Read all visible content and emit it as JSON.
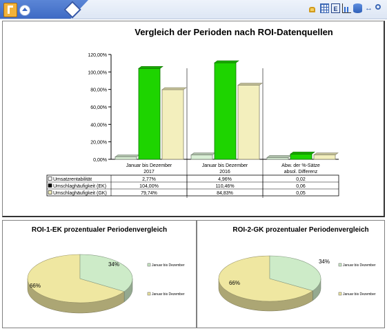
{
  "colors": {
    "green": "#1ed400",
    "cream": "#f3efbd",
    "light_green": "#cdebc8",
    "pie_yellow": "#efe7a1",
    "toolbar_blue": "#3e6ac4"
  },
  "toolbar": {
    "icons": [
      "app-icon",
      "up-icon",
      "nav-diamond-icon",
      "lock-icon",
      "grid-icon",
      "et-icon",
      "bar-chart-icon",
      "database-icon",
      "arrows-icon",
      "zoom-icon"
    ]
  },
  "main_chart": {
    "title": "Vergleich der Perioden nach ROI-Datenquellen",
    "y_ticks": [
      "0,00%",
      "20,00%",
      "40,00%",
      "60,00%",
      "80,00%",
      "100,00%",
      "120,00%"
    ],
    "column_headers": [
      [
        "Januar bis Dezember",
        "2017"
      ],
      [
        "Januar bis Dezember",
        "2016"
      ],
      [
        "Abw. der %-Sätze",
        "absol. Differenz"
      ]
    ],
    "rows": [
      {
        "label": "Umsatzrentabilität",
        "cells": [
          "2,77%",
          "4,96%",
          "0,02"
        ]
      },
      {
        "label": "Umschlaghäufigkeit (EK)",
        "cells": [
          "104,00%",
          "110,46%",
          "0,06"
        ]
      },
      {
        "label": "Umschlaghäufigkeit (GK)",
        "cells": [
          "79,74%",
          "84,83%",
          "0,05"
        ]
      }
    ]
  },
  "chart_data": [
    {
      "type": "bar",
      "title": "Vergleich der Perioden nach ROI-Datenquellen",
      "categories": [
        "Januar bis Dezember 2017",
        "Januar bis Dezember 2016",
        "Abw. der %-Sätze absol. Differenz"
      ],
      "series": [
        {
          "name": "Umsatzrentabilität",
          "values": [
            2.77,
            4.96,
            0.02
          ]
        },
        {
          "name": "Umschlaghäufigkeit (EK)",
          "values": [
            104.0,
            110.46,
            0.06
          ]
        },
        {
          "name": "Umschlaghäufigkeit (GK)",
          "values": [
            79.74,
            84.83,
            0.05
          ]
        }
      ],
      "bar_heights": [
        [
          2.77,
          104.0,
          79.74
        ],
        [
          4.96,
          110.46,
          84.83
        ],
        [
          2.0,
          6.0,
          5.0
        ]
      ],
      "ylim": [
        0,
        120
      ],
      "grid": false,
      "legend": "table-below"
    },
    {
      "type": "pie",
      "title": "ROI-1-EK prozentualer Periodenvergleich",
      "labels": [
        "Januar bis Dezember",
        "Januar bis Dezember"
      ],
      "values": [
        34,
        66
      ],
      "value_labels": [
        "34%",
        "66%"
      ],
      "legend": "right"
    },
    {
      "type": "pie",
      "title": "ROI-2-GK prozentualer Periodenvergleich",
      "labels": [
        "Januar bis Dezember",
        "Januar bis Dezember"
      ],
      "values": [
        34,
        66
      ],
      "value_labels": [
        "34%",
        "66%"
      ],
      "legend": "right"
    }
  ]
}
